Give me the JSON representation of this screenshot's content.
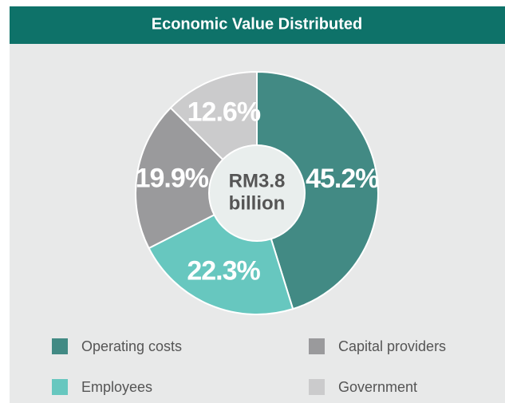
{
  "chart_data": {
    "type": "pie",
    "title": "Economic Value Distributed",
    "center_label": [
      "RM3.8",
      "billion"
    ],
    "categories": [
      "Operating costs",
      "Employees",
      "Capital providers",
      "Government"
    ],
    "values": [
      45.2,
      22.3,
      19.9,
      12.6
    ],
    "value_labels": [
      "45.2%",
      "22.3%",
      "19.9%",
      "12.6%"
    ],
    "colors": [
      "#428a84",
      "#67c7bf",
      "#9a9a9c",
      "#cbcbcc"
    ],
    "donut": true,
    "legend": "bottom"
  }
}
